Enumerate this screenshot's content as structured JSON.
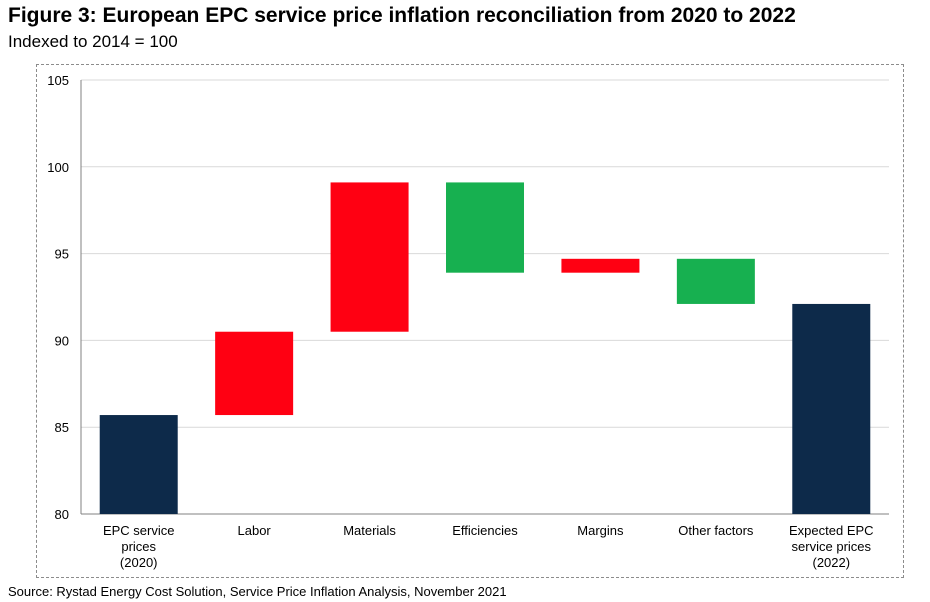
{
  "chart_data": {
    "type": "bar",
    "subtype": "waterfall",
    "title": "Figure 3: European EPC service price inflation reconciliation from 2020 to 2022",
    "subtitle": "Indexed to 2014 = 100",
    "ylim": [
      80,
      105
    ],
    "yticks": [
      "80",
      "85",
      "90",
      "95",
      "100",
      "105"
    ],
    "grid": true,
    "categories": [
      [
        "EPC service",
        "prices",
        "(2020)"
      ],
      [
        "Labor"
      ],
      [
        "Materials"
      ],
      [
        "Efficiencies"
      ],
      [
        "Margins"
      ],
      [
        "Other factors"
      ],
      [
        "Expected EPC",
        "service prices",
        "(2022)"
      ]
    ],
    "bars": [
      {
        "kind": "total",
        "start": 80,
        "end": 85.7
      },
      {
        "kind": "increase",
        "start": 85.7,
        "end": 90.5
      },
      {
        "kind": "increase",
        "start": 90.5,
        "end": 99.1
      },
      {
        "kind": "decrease",
        "start": 99.1,
        "end": 93.9
      },
      {
        "kind": "increase",
        "start": 93.9,
        "end": 94.7
      },
      {
        "kind": "decrease",
        "start": 94.7,
        "end": 92.1
      },
      {
        "kind": "total",
        "start": 80,
        "end": 92.1
      }
    ],
    "colors": {
      "total": "#0d2a4a",
      "increase": "#ff0012",
      "decrease": "#17b050",
      "grid": "#d9d9d9",
      "axis": "#808080"
    }
  },
  "source": "Source: Rystad Energy Cost Solution, Service Price Inflation Analysis, November 2021"
}
